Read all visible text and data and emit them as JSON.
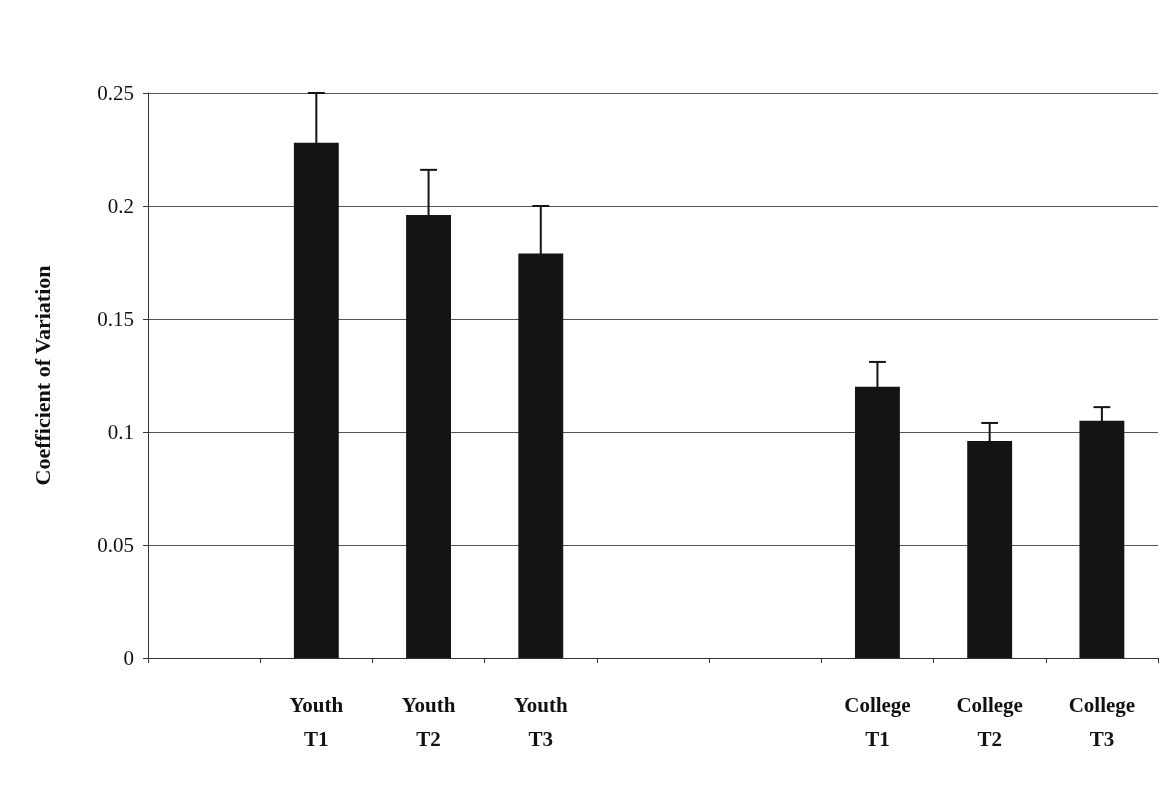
{
  "chart_data": {
    "type": "bar",
    "ylabel": "Coefficient of Variation",
    "categories": [
      null,
      "Youth\nT1",
      "Youth\nT2",
      "Youth\nT3",
      null,
      null,
      "College\nT1",
      "College\nT2",
      "College\nT3"
    ],
    "values": [
      null,
      0.228,
      0.196,
      0.179,
      null,
      null,
      0.12,
      0.096,
      0.105
    ],
    "errors": [
      null,
      0.022,
      0.02,
      0.021,
      null,
      null,
      0.011,
      0.008,
      0.006
    ],
    "color": "#141414",
    "ylim": [
      0,
      0.25
    ],
    "yticks": [
      0,
      0.05,
      0.1,
      0.15,
      0.2,
      0.25
    ],
    "grid": "y"
  }
}
